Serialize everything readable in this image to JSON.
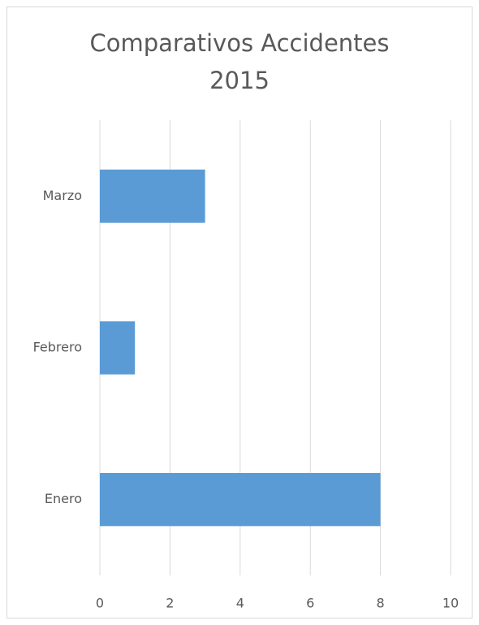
{
  "chart_data": {
    "type": "bar",
    "orientation": "horizontal",
    "title": "Comparativos Accidentes 2015",
    "categories": [
      "Enero",
      "Febrero",
      "Marzo"
    ],
    "values": [
      8,
      1,
      3
    ],
    "color": "#5b9bd5",
    "xlim": [
      0,
      10
    ],
    "xticks": [
      0,
      2,
      4,
      6,
      8,
      10
    ],
    "grid": true
  }
}
